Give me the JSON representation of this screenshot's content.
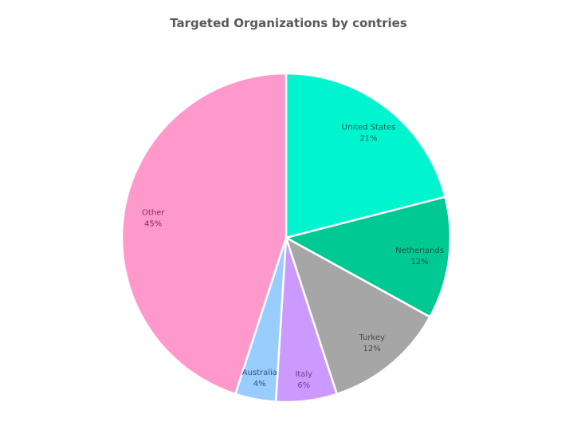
{
  "chart_data": {
    "type": "pie",
    "title": "Targeted Organizations by contries",
    "start": "top",
    "direction": "clockwise",
    "slices": [
      {
        "label": "United States",
        "value": 21,
        "display": "21%",
        "color": "#00F5CF",
        "text_color": "#0A6356"
      },
      {
        "label": "Netherlands",
        "value": 12,
        "display": "12%",
        "color": "#00C994",
        "text_color": "#0B5940"
      },
      {
        "label": "Turkey",
        "value": 12,
        "display": "12%",
        "color": "#A6A6A6",
        "text_color": "#4A4A4A"
      },
      {
        "label": "Italy",
        "value": 6,
        "display": "6%",
        "color": "#CC99FF",
        "text_color": "#6B3F8F"
      },
      {
        "label": "Australia",
        "value": 4,
        "display": "4%",
        "color": "#99CCFF",
        "text_color": "#2F5878"
      },
      {
        "label": "Other",
        "value": 45,
        "display": "45%",
        "color": "#FF99CC",
        "text_color": "#7A2F55"
      }
    ]
  }
}
